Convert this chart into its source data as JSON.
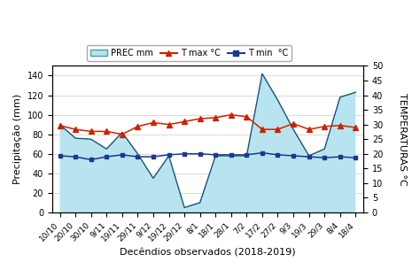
{
  "x_labels": [
    "10/10",
    "20/10",
    "30/10",
    "9/11",
    "19/11",
    "29/11",
    "9/12",
    "19/12",
    "29/12",
    "8/1",
    "18/1",
    "28/1",
    "7/2",
    "17/2",
    "27/2",
    "9/3",
    "19/3",
    "29/3",
    "8/4",
    "18/4"
  ],
  "prec": [
    90,
    76,
    75,
    65,
    82,
    60,
    35,
    58,
    5,
    10,
    58,
    58,
    58,
    142,
    115,
    85,
    58,
    65,
    118,
    123
  ],
  "tmax": [
    89,
    85,
    83,
    83,
    80,
    88,
    92,
    90,
    93,
    96,
    97,
    100,
    98,
    85,
    85,
    91,
    85,
    88,
    89,
    87
  ],
  "tmin": [
    58,
    57,
    54,
    57,
    59,
    57,
    57,
    59,
    60,
    60,
    59,
    59,
    59,
    61,
    59,
    58,
    57,
    56,
    57,
    56
  ],
  "prec_fill_color": "#b8e4f0",
  "prec_line_color": "#1a5276",
  "tmax_color": "#cc2200",
  "tmin_color": "#1a3a8c",
  "ylabel_left": "Precipitação (mm)",
  "ylabel_right": "TEMPERATURAS °C",
  "xlabel": "Decêndios observados (2018-2019)",
  "ylim_left": [
    0,
    150
  ],
  "ylim_right": [
    0,
    50
  ],
  "yticks_left": [
    0,
    20,
    40,
    60,
    80,
    100,
    120,
    140
  ],
  "yticks_right": [
    0,
    5,
    10,
    15,
    20,
    25,
    30,
    35,
    40,
    45,
    50
  ],
  "legend_prec": "PREC mm",
  "legend_tmax": "T max °C",
  "legend_tmin": "T min  °C",
  "axis_fontsize": 8,
  "tick_fontsize": 7
}
